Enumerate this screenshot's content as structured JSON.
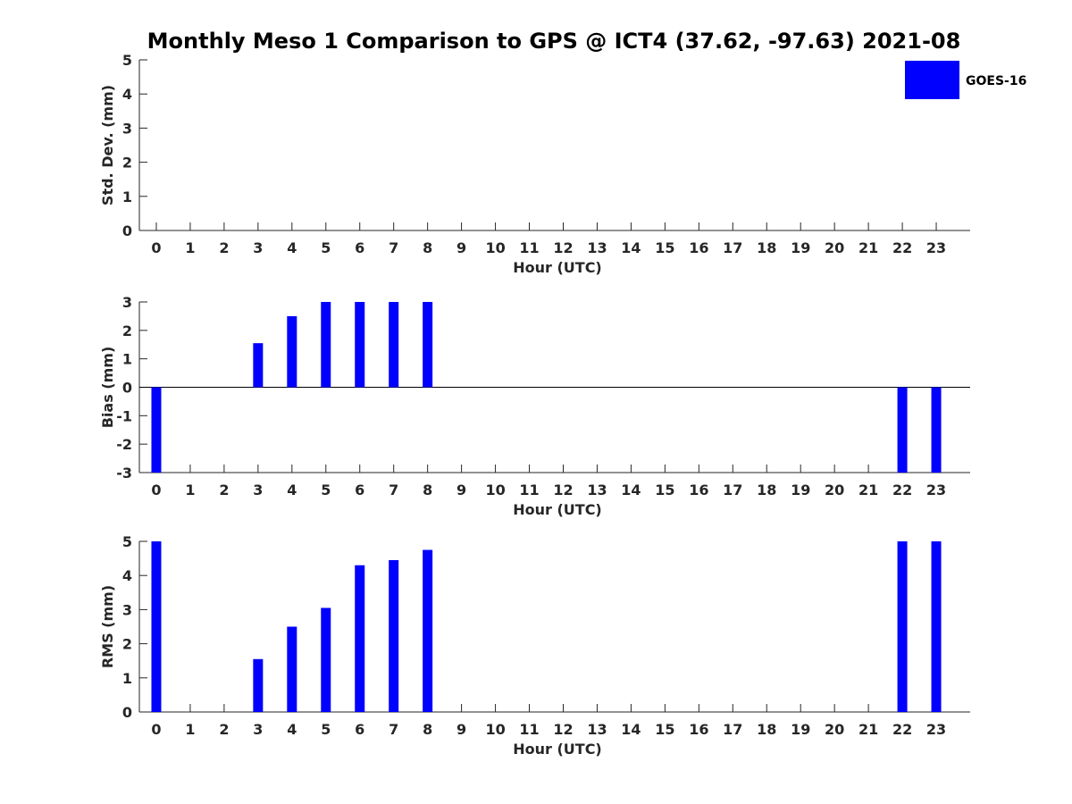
{
  "figure": {
    "title": "Monthly Meso 1 Comparison to GPS @ ICT4 (37.62, -97.63) 2021-08",
    "legend": {
      "label": "GOES-16",
      "color": "#0000ff",
      "placement": "top-right"
    }
  },
  "chart_data": [
    {
      "type": "bar",
      "xlabel": "Hour (UTC)",
      "ylabel": "Std. Dev. (mm)",
      "ylim": [
        0,
        5
      ],
      "yticks": [
        0,
        1,
        2,
        3,
        4,
        5
      ],
      "categories": [
        0,
        1,
        2,
        3,
        4,
        5,
        6,
        7,
        8,
        9,
        10,
        11,
        12,
        13,
        14,
        15,
        16,
        17,
        18,
        19,
        20,
        21,
        22,
        23
      ],
      "series": [
        {
          "name": "GOES-16",
          "color": "#0000ff",
          "values": [
            null,
            null,
            null,
            null,
            null,
            null,
            null,
            null,
            null,
            null,
            null,
            null,
            null,
            null,
            null,
            null,
            null,
            null,
            null,
            null,
            null,
            null,
            null,
            null
          ]
        }
      ]
    },
    {
      "type": "bar",
      "xlabel": "Hour (UTC)",
      "ylabel": "Bias (mm)",
      "ylim": [
        -3,
        3
      ],
      "yticks": [
        -3,
        -2,
        -1,
        0,
        1,
        2,
        3
      ],
      "zero_line": true,
      "categories": [
        0,
        1,
        2,
        3,
        4,
        5,
        6,
        7,
        8,
        9,
        10,
        11,
        12,
        13,
        14,
        15,
        16,
        17,
        18,
        19,
        20,
        21,
        22,
        23
      ],
      "series": [
        {
          "name": "GOES-16",
          "color": "#0000ff",
          "values": [
            -3,
            null,
            null,
            1.55,
            2.5,
            3,
            3,
            3,
            3,
            null,
            null,
            null,
            null,
            null,
            null,
            null,
            null,
            null,
            null,
            null,
            null,
            null,
            -3,
            -3
          ]
        }
      ]
    },
    {
      "type": "bar",
      "xlabel": "Hour (UTC)",
      "ylabel": "RMS (mm)",
      "ylim": [
        0,
        5
      ],
      "yticks": [
        0,
        1,
        2,
        3,
        4,
        5
      ],
      "categories": [
        0,
        1,
        2,
        3,
        4,
        5,
        6,
        7,
        8,
        9,
        10,
        11,
        12,
        13,
        14,
        15,
        16,
        17,
        18,
        19,
        20,
        21,
        22,
        23
      ],
      "series": [
        {
          "name": "GOES-16",
          "color": "#0000ff",
          "values": [
            5,
            null,
            null,
            1.55,
            2.5,
            3.05,
            4.3,
            4.45,
            4.75,
            null,
            null,
            null,
            null,
            null,
            null,
            null,
            null,
            null,
            null,
            null,
            null,
            null,
            5,
            5
          ]
        }
      ]
    }
  ]
}
